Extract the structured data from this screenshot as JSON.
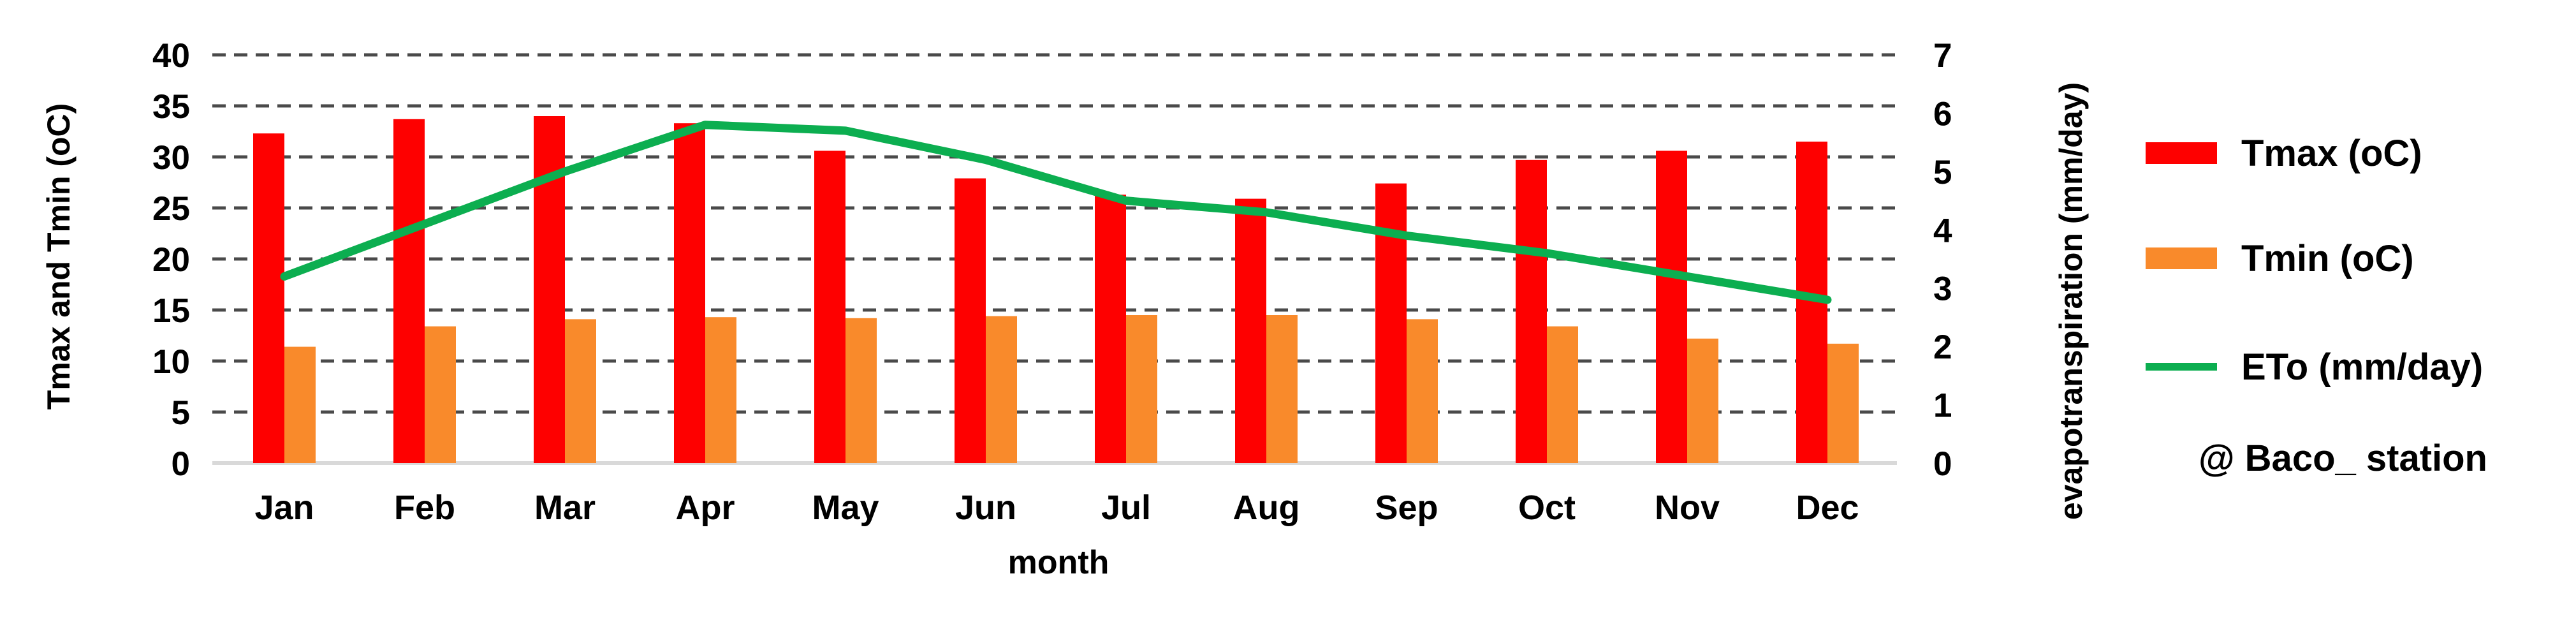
{
  "figure": {
    "background": "#ffffff"
  },
  "chart_data": {
    "type": "combo-bar-line",
    "title": "",
    "categories": [
      "Jan",
      "Feb",
      "Mar",
      "Apr",
      "May",
      "Jun",
      "Jul",
      "Aug",
      "Sep",
      "Oct",
      "Nov",
      "Dec"
    ],
    "series": [
      {
        "name": "Tmax (oC)",
        "type": "bar",
        "axis": "left",
        "color": "#fe0000",
        "values": [
          32.3,
          33.7,
          34.0,
          33.3,
          30.6,
          27.9,
          26.3,
          25.9,
          27.4,
          29.7,
          30.6,
          31.5
        ]
      },
      {
        "name": "Tmin (oC)",
        "type": "bar",
        "axis": "left",
        "color": "#f98a2b",
        "values": [
          11.4,
          13.4,
          14.1,
          14.3,
          14.2,
          14.4,
          14.5,
          14.5,
          14.1,
          13.4,
          12.2,
          11.7
        ]
      },
      {
        "name": "ETo (mm/day)",
        "type": "line",
        "axis": "right",
        "color": "#0cae50",
        "values": [
          3.2,
          4.1,
          5.0,
          5.8,
          5.7,
          5.2,
          4.5,
          4.3,
          3.9,
          3.6,
          3.2,
          2.8
        ]
      }
    ],
    "left_axis": {
      "title": "Tmax and Tmin (oC)",
      "min": 0,
      "max": 40,
      "step": 5
    },
    "right_axis": {
      "title": "evapotranspiration (mm/day)",
      "min": 0,
      "max": 7,
      "step": 1
    },
    "xlabel": "month",
    "annotation": "@ Baco_ station",
    "grid": {
      "show": true,
      "style": "dashed",
      "color": "#4a4a4a",
      "baseline_color": "#d9d9d9"
    },
    "legend_position": "right"
  }
}
